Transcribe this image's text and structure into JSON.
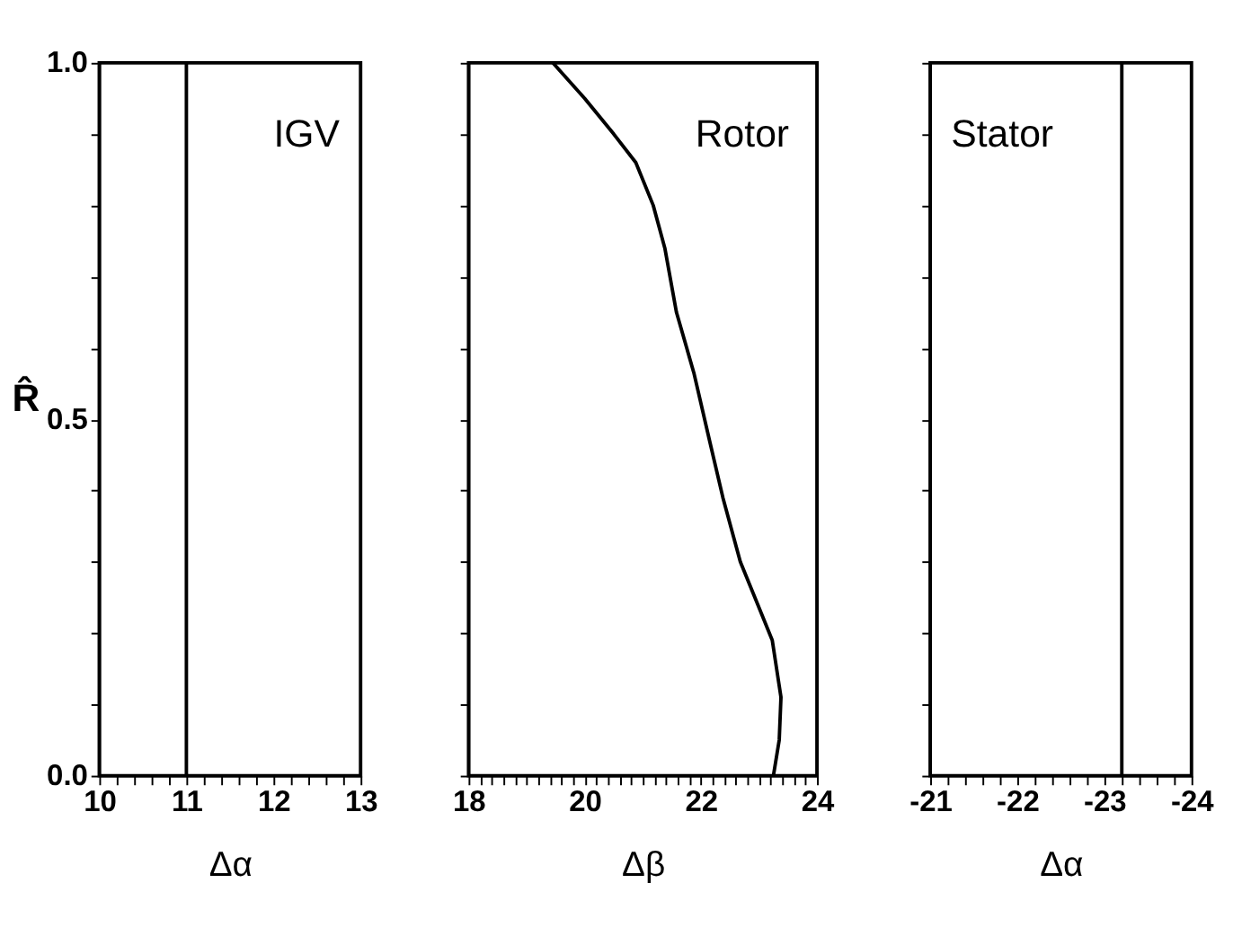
{
  "chart_data": [
    {
      "type": "line",
      "ylabel": "R̂",
      "xlabel": "Δα",
      "annotations": [
        "IGV"
      ],
      "xlim": [
        10,
        13
      ],
      "ylim": [
        0,
        1
      ],
      "xticks": [
        10,
        {
          "value": 10.2,
          "label": null
        },
        {
          "value": 10.4,
          "label": null
        },
        {
          "value": 10.6,
          "label": null
        },
        {
          "value": 10.8,
          "label": null
        },
        11,
        {
          "value": 11.2,
          "label": null
        },
        {
          "value": 11.4,
          "label": null
        },
        {
          "value": 11.6,
          "label": null
        },
        {
          "value": 11.8,
          "label": null
        },
        12,
        {
          "value": 12.2,
          "label": null
        },
        {
          "value": 12.4,
          "label": null
        },
        {
          "value": 12.6,
          "label": null
        },
        {
          "value": 12.8,
          "label": null
        },
        13
      ],
      "yticks": [
        {
          "value": 0,
          "label": "0.0"
        },
        {
          "value": 0.1,
          "label": null
        },
        {
          "value": 0.2,
          "label": null
        },
        {
          "value": 0.3,
          "label": null
        },
        {
          "value": 0.4,
          "label": null
        },
        {
          "value": 0.5,
          "label": "0.5"
        },
        {
          "value": 0.6,
          "label": null
        },
        {
          "value": 0.7,
          "label": null
        },
        {
          "value": 0.8,
          "label": null
        },
        {
          "value": 0.9,
          "label": null
        },
        {
          "value": 1,
          "label": "1.0"
        }
      ],
      "series": [
        {
          "color": "#000000",
          "x": [
            11,
            11,
            11
          ],
          "values": [
            0,
            0.5,
            1
          ]
        }
      ]
    },
    {
      "type": "line",
      "xlabel": "Δβ",
      "annotations": [
        "Rotor"
      ],
      "xlim": [
        18,
        24
      ],
      "ylim": [
        0,
        1
      ],
      "tick_labels": "x",
      "yticks": [
        {
          "value": 0,
          "label": null
        },
        {
          "value": 0.1,
          "label": null
        },
        {
          "value": 0.2,
          "label": null
        },
        {
          "value": 0.3,
          "label": null
        },
        {
          "value": 0.4,
          "label": null
        },
        {
          "value": 0.5,
          "label": null
        },
        {
          "value": 0.6,
          "label": null
        },
        {
          "value": 0.7,
          "label": null
        },
        {
          "value": 0.8,
          "label": null
        },
        {
          "value": 0.9,
          "label": null
        },
        {
          "value": 1,
          "label": null
        }
      ],
      "xticks": [
        18,
        {
          "value": 18.2,
          "label": null
        },
        {
          "value": 18.4,
          "label": null
        },
        {
          "value": 18.6,
          "label": null
        },
        {
          "value": 18.8,
          "label": null
        },
        {
          "value": 19,
          "label": null
        },
        {
          "value": 19.2,
          "label": null
        },
        {
          "value": 19.4,
          "label": null
        },
        {
          "value": 19.6,
          "label": null
        },
        {
          "value": 19.8,
          "label": null
        },
        20,
        {
          "value": 20.2,
          "label": null
        },
        {
          "value": 20.4,
          "label": null
        },
        {
          "value": 20.6,
          "label": null
        },
        {
          "value": 20.8,
          "label": null
        },
        {
          "value": 21,
          "label": null
        },
        {
          "value": 21.2,
          "label": null
        },
        {
          "value": 21.4,
          "label": null
        },
        {
          "value": 21.6,
          "label": null
        },
        {
          "value": 21.8,
          "label": null
        },
        22,
        {
          "value": 22.2,
          "label": null
        },
        {
          "value": 22.4,
          "label": null
        },
        {
          "value": 22.6,
          "label": null
        },
        {
          "value": 22.8,
          "label": null
        },
        {
          "value": 23,
          "label": null
        },
        {
          "value": 23.2,
          "label": null
        },
        {
          "value": 23.4,
          "label": null
        },
        {
          "value": 23.6,
          "label": null
        },
        {
          "value": 23.8,
          "label": null
        },
        24
      ],
      "series": [
        {
          "color": "#000000",
          "x": [
            19.45,
            20.0,
            20.5,
            20.88,
            21.18,
            21.38,
            21.58,
            21.88,
            22.15,
            22.38,
            22.68,
            22.98,
            23.23,
            23.38,
            23.35,
            23.25
          ],
          "values": [
            1.0,
            0.95,
            0.9,
            0.86,
            0.8,
            0.74,
            0.65,
            0.565,
            0.47,
            0.39,
            0.3,
            0.24,
            0.19,
            0.11,
            0.05,
            0.0
          ]
        }
      ]
    },
    {
      "type": "line",
      "xlabel": "Δα",
      "annotations": [
        "Stator"
      ],
      "xlim": [
        -21,
        -24
      ],
      "ylim": [
        0,
        1
      ],
      "tick_labels": "x",
      "xticks": [
        -21,
        {
          "value": -21.2,
          "label": null
        },
        {
          "value": -21.4,
          "label": null
        },
        {
          "value": -21.6,
          "label": null
        },
        {
          "value": -21.8,
          "label": null
        },
        -22,
        {
          "value": -22.2,
          "label": null
        },
        {
          "value": -22.4,
          "label": null
        },
        {
          "value": -22.6,
          "label": null
        },
        {
          "value": -22.8,
          "label": null
        },
        -23,
        {
          "value": -23.2,
          "label": null
        },
        {
          "value": -23.4,
          "label": null
        },
        {
          "value": -23.6,
          "label": null
        },
        {
          "value": -23.8,
          "label": null
        },
        -24
      ],
      "yticks": [
        {
          "value": 0,
          "label": null
        },
        {
          "value": 0.1,
          "label": null
        },
        {
          "value": 0.2,
          "label": null
        },
        {
          "value": 0.3,
          "label": null
        },
        {
          "value": 0.4,
          "label": null
        },
        {
          "value": 0.5,
          "label": null
        },
        {
          "value": 0.6,
          "label": null
        },
        {
          "value": 0.7,
          "label": null
        },
        {
          "value": 0.8,
          "label": null
        },
        {
          "value": 0.9,
          "label": null
        },
        {
          "value": 1,
          "label": null
        }
      ],
      "series": [
        {
          "color": "#000000",
          "x": [
            -23.2,
            -23.2,
            -23.2
          ],
          "values": [
            0,
            0.5,
            1
          ]
        }
      ]
    }
  ]
}
